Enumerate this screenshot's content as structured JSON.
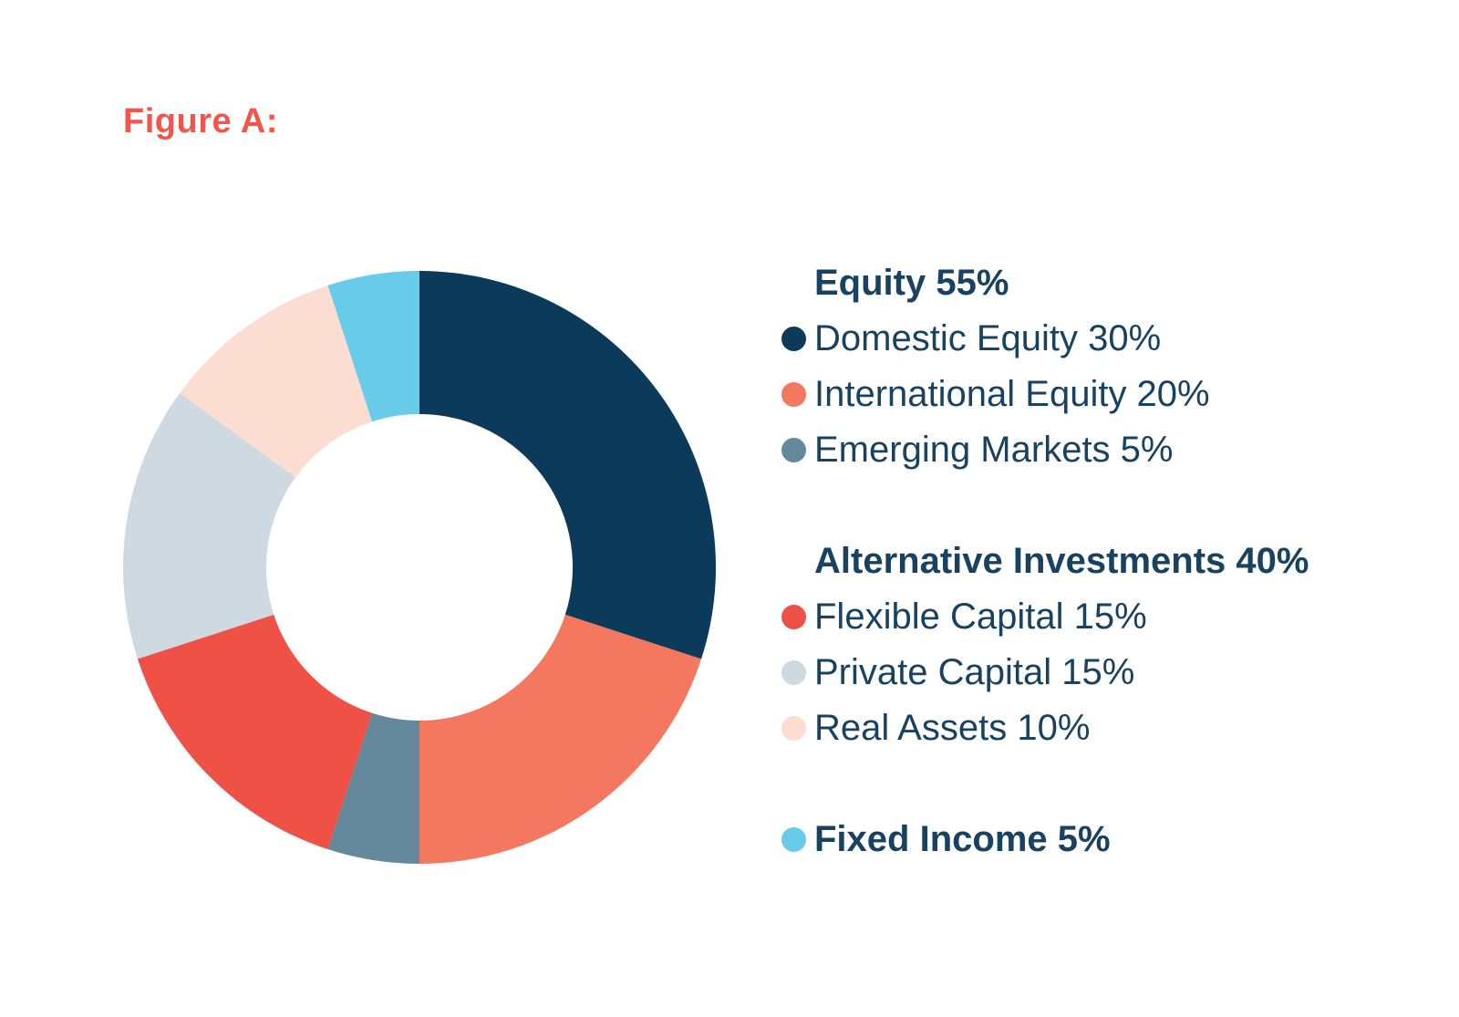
{
  "figure_label": "Figure A:",
  "colors": {
    "title_accent": "#F3544B",
    "legend_text": "#194160",
    "background": "#FFFFFF"
  },
  "chart_data": {
    "type": "pie",
    "variant": "donut",
    "title": "Figure A:",
    "start_angle_deg": 0,
    "direction": "clockwise",
    "inner_radius_ratio": 0.517,
    "total": 100,
    "segments": [
      {
        "label": "Domestic Equity",
        "value": 30,
        "color": "#0C3A5A"
      },
      {
        "label": "International Equity",
        "value": 20,
        "color": "#F4775F"
      },
      {
        "label": "Emerging Markets",
        "value": 5,
        "color": "#64889C"
      },
      {
        "label": "Flexible Capital",
        "value": 15,
        "color": "#F05146"
      },
      {
        "label": "Private Capital",
        "value": 15,
        "color": "#CFD9E1"
      },
      {
        "label": "Real Assets",
        "value": 10,
        "color": "#FBDDD1"
      },
      {
        "label": "Fixed Income",
        "value": 5,
        "color": "#67CBE9"
      }
    ],
    "legend_position": "right",
    "legend_groups": [
      {
        "header": "Equity 55%",
        "items": [
          {
            "label": "Domestic Equity 30%",
            "color": "#0C3A5A"
          },
          {
            "label": "International Equity 20%",
            "color": "#F4775F"
          },
          {
            "label": "Emerging Markets 5%",
            "color": "#64889C"
          }
        ]
      },
      {
        "header": "Alternative Investments 40%",
        "items": [
          {
            "label": "Flexible Capital 15%",
            "color": "#F05146"
          },
          {
            "label": "Private Capital 15%",
            "color": "#CFD9E1"
          },
          {
            "label": "Real Assets 10%",
            "color": "#FBDDD1"
          }
        ]
      },
      {
        "header": "",
        "items": [
          {
            "label": "Fixed Income 5%",
            "color": "#67CBE9",
            "bold": true
          }
        ]
      }
    ]
  }
}
